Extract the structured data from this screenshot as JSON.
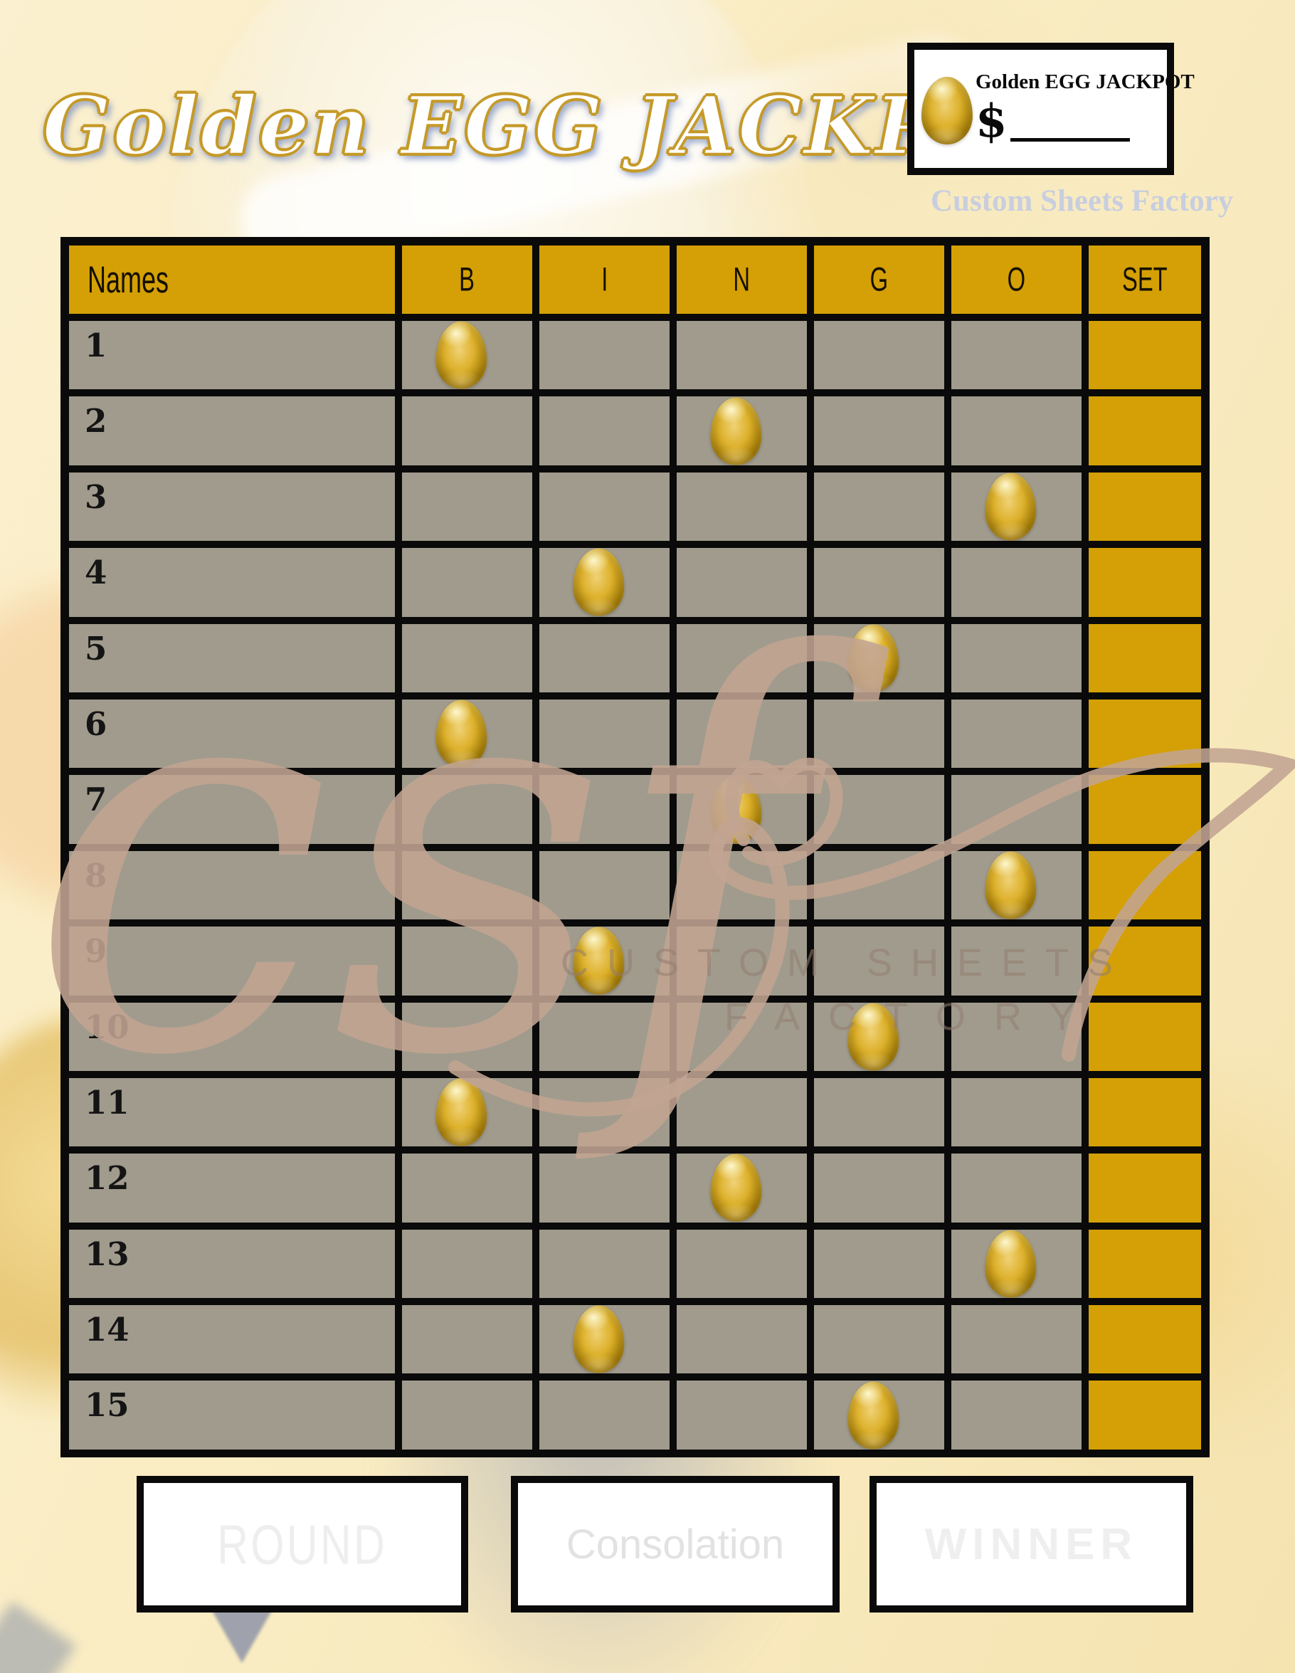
{
  "title": "Golden EGG JACKPOT",
  "brand": "Custom Sheets Factory",
  "jackpot_box": {
    "label": "Golden EGG JACKPOT",
    "currency": "$",
    "amount_value": "",
    "egg_icon": "golden-egg-icon"
  },
  "watermark": {
    "monogram": "csf",
    "line1": "CUSTOM SHEETS",
    "line2": "FACTORY"
  },
  "table": {
    "headers": [
      "Names",
      "B",
      "I",
      "N",
      "G",
      "O",
      "SET"
    ],
    "letter_columns": [
      "B",
      "I",
      "N",
      "G",
      "O"
    ],
    "rows": [
      {
        "num": "1",
        "name": "",
        "egg": "B"
      },
      {
        "num": "2",
        "name": "",
        "egg": "N"
      },
      {
        "num": "3",
        "name": "",
        "egg": "O"
      },
      {
        "num": "4",
        "name": "",
        "egg": "I"
      },
      {
        "num": "5",
        "name": "",
        "egg": "G"
      },
      {
        "num": "6",
        "name": "",
        "egg": "B"
      },
      {
        "num": "7",
        "name": "",
        "egg": "N"
      },
      {
        "num": "8",
        "name": "",
        "egg": "O"
      },
      {
        "num": "9",
        "name": "",
        "egg": "I"
      },
      {
        "num": "10",
        "name": "",
        "egg": "G"
      },
      {
        "num": "11",
        "name": "",
        "egg": "B"
      },
      {
        "num": "12",
        "name": "",
        "egg": "N"
      },
      {
        "num": "13",
        "name": "",
        "egg": "O"
      },
      {
        "num": "14",
        "name": "",
        "egg": "I"
      },
      {
        "num": "15",
        "name": "",
        "egg": "G"
      }
    ]
  },
  "footer_boxes": [
    {
      "label": "ROUND"
    },
    {
      "label": "Consolation"
    },
    {
      "label": "WINNER"
    }
  ],
  "colors": {
    "gold": "#D4A005",
    "grid_black": "#0A0A0A",
    "cream_cell": "#FDF5DE",
    "page_cream": "#FAEDC4",
    "title_outline": "#C59A28",
    "watermark_tan": "#C1A492",
    "brand_gray": "#C8CEDF",
    "faint_label": "#ECECEC"
  }
}
